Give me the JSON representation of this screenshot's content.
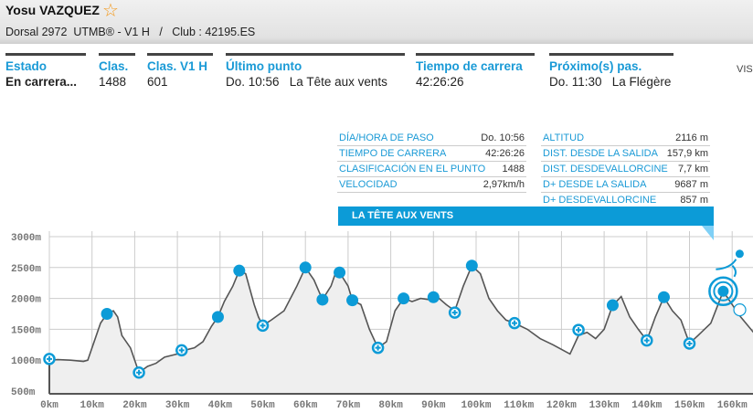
{
  "header": {
    "name": "Yosu VAZQUEZ",
    "favorite_icon": "star-icon",
    "bib": "Dorsal 2972",
    "race": "UTMB® - V1 H",
    "separator": "/",
    "club": "Club : 42195.ES"
  },
  "summary": [
    {
      "label": "Estado",
      "value": "En carrera..."
    },
    {
      "label": "Clas.",
      "value": "1488"
    },
    {
      "label": "Clas. V1 H",
      "value": "601"
    },
    {
      "label": "Último punto",
      "value": "Do. 10:56   La Tête aux vents"
    },
    {
      "label": "Tiempo de carrera",
      "value": "42:26:26"
    },
    {
      "label": "Próximo(s) pas.",
      "value": "Do. 11:30   La Flégère"
    }
  ],
  "vis_label": "VIS",
  "point_details": {
    "left": [
      [
        "DÍA/HORA DE PASO",
        "Do. 10:56"
      ],
      [
        "TIEMPO DE CARRERA",
        "42:26:26"
      ],
      [
        "CLASIFICACIÓN EN EL PUNTO",
        "1488"
      ],
      [
        "VELOCIDAD",
        "2,97km/h"
      ]
    ],
    "right": [
      [
        "ALTITUD",
        "2116 m"
      ],
      [
        "DIST. DESDE LA SALIDA",
        "157,9 km"
      ],
      [
        "DIST. DESDEVALLORCINE",
        "7,7 km"
      ],
      [
        "D+ DESDE LA SALIDA",
        "9687 m"
      ],
      [
        "D+ DESDEVALLORCINE",
        "857 m"
      ]
    ],
    "title": "LA TÊTE AUX VENTS"
  },
  "chart_data": {
    "type": "area",
    "xlim": [
      0,
      165
    ],
    "ylim": [
      500,
      3000
    ],
    "x_ticks": [
      "0km",
      "10km",
      "20km",
      "30km",
      "40km",
      "50km",
      "60km",
      "70km",
      "80km",
      "90km",
      "100km",
      "110km",
      "120km",
      "130km",
      "140km",
      "150km",
      "160km"
    ],
    "y_ticks": [
      "3000m",
      "2500m",
      "2000m",
      "1500m",
      "1000m",
      "500m"
    ],
    "grid": true,
    "colors": {
      "line": "#555555",
      "fill": "#efefef",
      "marker": "#0c9bd7"
    },
    "profile": [
      [
        0,
        1000
      ],
      [
        2,
        1010
      ],
      [
        5,
        1000
      ],
      [
        8,
        980
      ],
      [
        9,
        1000
      ],
      [
        10,
        1200
      ],
      [
        12,
        1600
      ],
      [
        13.5,
        1750
      ],
      [
        15,
        1800
      ],
      [
        16,
        1700
      ],
      [
        17,
        1400
      ],
      [
        19,
        1200
      ],
      [
        20.5,
        900
      ],
      [
        21,
        800
      ],
      [
        23,
        900
      ],
      [
        25,
        950
      ],
      [
        27,
        1050
      ],
      [
        30,
        1100
      ],
      [
        31,
        1150
      ],
      [
        34,
        1200
      ],
      [
        36,
        1300
      ],
      [
        38,
        1550
      ],
      [
        39.5,
        1700
      ],
      [
        41,
        1950
      ],
      [
        43,
        2200
      ],
      [
        44.5,
        2450
      ],
      [
        46,
        2400
      ],
      [
        48,
        1900
      ],
      [
        49,
        1700
      ],
      [
        50,
        1560
      ],
      [
        52,
        1650
      ],
      [
        55,
        1800
      ],
      [
        58,
        2200
      ],
      [
        60,
        2500
      ],
      [
        62,
        2300
      ],
      [
        64,
        1980
      ],
      [
        66,
        2200
      ],
      [
        67,
        2400
      ],
      [
        68,
        2420
      ],
      [
        70,
        2200
      ],
      [
        71,
        1970
      ],
      [
        73,
        1900
      ],
      [
        75,
        1500
      ],
      [
        77,
        1200
      ],
      [
        79,
        1300
      ],
      [
        81,
        1800
      ],
      [
        83,
        2000
      ],
      [
        85,
        1950
      ],
      [
        87,
        2000
      ],
      [
        89,
        1980
      ],
      [
        91,
        2020
      ],
      [
        93,
        1900
      ],
      [
        95,
        1800
      ],
      [
        97,
        2200
      ],
      [
        99,
        2530
      ],
      [
        101,
        2400
      ],
      [
        103,
        2000
      ],
      [
        105,
        1800
      ],
      [
        107,
        1650
      ],
      [
        109,
        1600
      ],
      [
        112,
        1500
      ],
      [
        115,
        1350
      ],
      [
        118,
        1250
      ],
      [
        122,
        1100
      ],
      [
        124,
        1400
      ],
      [
        126,
        1450
      ],
      [
        128,
        1350
      ],
      [
        130,
        1500
      ],
      [
        132,
        1890
      ],
      [
        134,
        2030
      ],
      [
        136,
        1700
      ],
      [
        138,
        1500
      ],
      [
        140,
        1320
      ],
      [
        142,
        1700
      ],
      [
        144,
        2020
      ],
      [
        146,
        1800
      ],
      [
        148,
        1650
      ],
      [
        150,
        1270
      ],
      [
        152,
        1400
      ],
      [
        155,
        1600
      ],
      [
        157.9,
        2116
      ],
      [
        160,
        1900
      ],
      [
        162,
        1700
      ],
      [
        165,
        1450
      ]
    ],
    "summits": [
      [
        13.5,
        1750
      ],
      [
        39.5,
        1700
      ],
      [
        44.5,
        2450
      ],
      [
        60,
        2500
      ],
      [
        64,
        1980
      ],
      [
        68,
        2420
      ],
      [
        71,
        1970
      ],
      [
        83,
        2000
      ],
      [
        90,
        2020
      ],
      [
        99,
        2530
      ],
      [
        132,
        1890
      ],
      [
        144,
        2020
      ]
    ],
    "aid_stations": [
      [
        0,
        1020
      ],
      [
        21,
        800
      ],
      [
        31,
        1160
      ],
      [
        50,
        1560
      ],
      [
        77,
        1200
      ],
      [
        95,
        1770
      ],
      [
        109,
        1600
      ],
      [
        124,
        1490
      ],
      [
        140,
        1320
      ],
      [
        150,
        1270
      ]
    ],
    "current": [
      157.9,
      2116
    ],
    "next": [
      160.5,
      1800
    ]
  }
}
